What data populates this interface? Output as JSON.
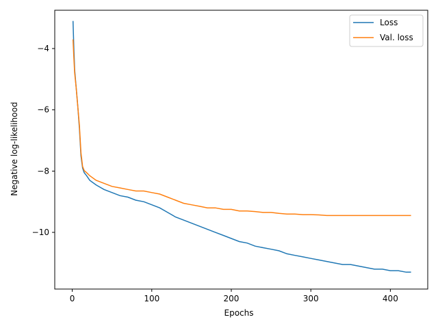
{
  "chart_data": {
    "type": "line",
    "title": "",
    "xlabel": "Epochs",
    "ylabel": "Negative log-likelihood",
    "xlim": [
      -22,
      447
    ],
    "ylim": [
      -11.85,
      -2.75
    ],
    "xticks": [
      0,
      100,
      200,
      300,
      400
    ],
    "xtick_labels": [
      "0",
      "100",
      "200",
      "300",
      "400"
    ],
    "yticks": [
      -10,
      -8,
      -6,
      -4
    ],
    "ytick_labels": [
      "−10",
      "−8",
      "−6",
      "−4"
    ],
    "grid": false,
    "legend_position": "top-right",
    "series": [
      {
        "name": "Loss",
        "color": "#1f77b4",
        "points": [
          [
            1,
            -3.1
          ],
          [
            2,
            -4.0
          ],
          [
            3,
            -4.7
          ],
          [
            5,
            -5.3
          ],
          [
            7,
            -5.9
          ],
          [
            9,
            -6.6
          ],
          [
            11,
            -7.5
          ],
          [
            13,
            -7.9
          ],
          [
            15,
            -8.05
          ],
          [
            18,
            -8.15
          ],
          [
            22,
            -8.3
          ],
          [
            30,
            -8.45
          ],
          [
            40,
            -8.6
          ],
          [
            50,
            -8.7
          ],
          [
            60,
            -8.8
          ],
          [
            70,
            -8.85
          ],
          [
            80,
            -8.95
          ],
          [
            90,
            -9.0
          ],
          [
            100,
            -9.1
          ],
          [
            110,
            -9.2
          ],
          [
            120,
            -9.35
          ],
          [
            130,
            -9.5
          ],
          [
            140,
            -9.6
          ],
          [
            150,
            -9.7
          ],
          [
            160,
            -9.8
          ],
          [
            170,
            -9.9
          ],
          [
            180,
            -10.0
          ],
          [
            190,
            -10.1
          ],
          [
            200,
            -10.2
          ],
          [
            210,
            -10.3
          ],
          [
            220,
            -10.35
          ],
          [
            230,
            -10.45
          ],
          [
            240,
            -10.5
          ],
          [
            250,
            -10.55
          ],
          [
            260,
            -10.6
          ],
          [
            270,
            -10.7
          ],
          [
            280,
            -10.75
          ],
          [
            290,
            -10.8
          ],
          [
            300,
            -10.85
          ],
          [
            310,
            -10.9
          ],
          [
            320,
            -10.95
          ],
          [
            330,
            -11.0
          ],
          [
            340,
            -11.05
          ],
          [
            350,
            -11.05
          ],
          [
            360,
            -11.1
          ],
          [
            370,
            -11.15
          ],
          [
            380,
            -11.2
          ],
          [
            390,
            -11.2
          ],
          [
            400,
            -11.25
          ],
          [
            410,
            -11.25
          ],
          [
            420,
            -11.3
          ],
          [
            426,
            -11.3
          ]
        ]
      },
      {
        "name": "Val. loss",
        "color": "#ff7f0e",
        "points": [
          [
            1,
            -3.7
          ],
          [
            2,
            -4.3
          ],
          [
            3,
            -4.8
          ],
          [
            5,
            -5.3
          ],
          [
            7,
            -5.9
          ],
          [
            9,
            -6.5
          ],
          [
            11,
            -7.4
          ],
          [
            13,
            -7.85
          ],
          [
            15,
            -7.98
          ],
          [
            18,
            -8.05
          ],
          [
            22,
            -8.15
          ],
          [
            30,
            -8.3
          ],
          [
            40,
            -8.4
          ],
          [
            50,
            -8.5
          ],
          [
            60,
            -8.55
          ],
          [
            70,
            -8.6
          ],
          [
            80,
            -8.65
          ],
          [
            90,
            -8.65
          ],
          [
            100,
            -8.7
          ],
          [
            110,
            -8.75
          ],
          [
            120,
            -8.85
          ],
          [
            130,
            -8.95
          ],
          [
            140,
            -9.05
          ],
          [
            150,
            -9.1
          ],
          [
            160,
            -9.15
          ],
          [
            170,
            -9.2
          ],
          [
            180,
            -9.2
          ],
          [
            190,
            -9.25
          ],
          [
            200,
            -9.25
          ],
          [
            210,
            -9.3
          ],
          [
            220,
            -9.3
          ],
          [
            230,
            -9.32
          ],
          [
            240,
            -9.35
          ],
          [
            250,
            -9.35
          ],
          [
            260,
            -9.38
          ],
          [
            270,
            -9.4
          ],
          [
            280,
            -9.4
          ],
          [
            290,
            -9.42
          ],
          [
            300,
            -9.42
          ],
          [
            310,
            -9.43
          ],
          [
            320,
            -9.45
          ],
          [
            330,
            -9.45
          ],
          [
            340,
            -9.45
          ],
          [
            350,
            -9.45
          ],
          [
            360,
            -9.45
          ],
          [
            370,
            -9.45
          ],
          [
            380,
            -9.45
          ],
          [
            390,
            -9.45
          ],
          [
            400,
            -9.45
          ],
          [
            410,
            -9.45
          ],
          [
            420,
            -9.45
          ],
          [
            426,
            -9.45
          ]
        ]
      }
    ]
  }
}
